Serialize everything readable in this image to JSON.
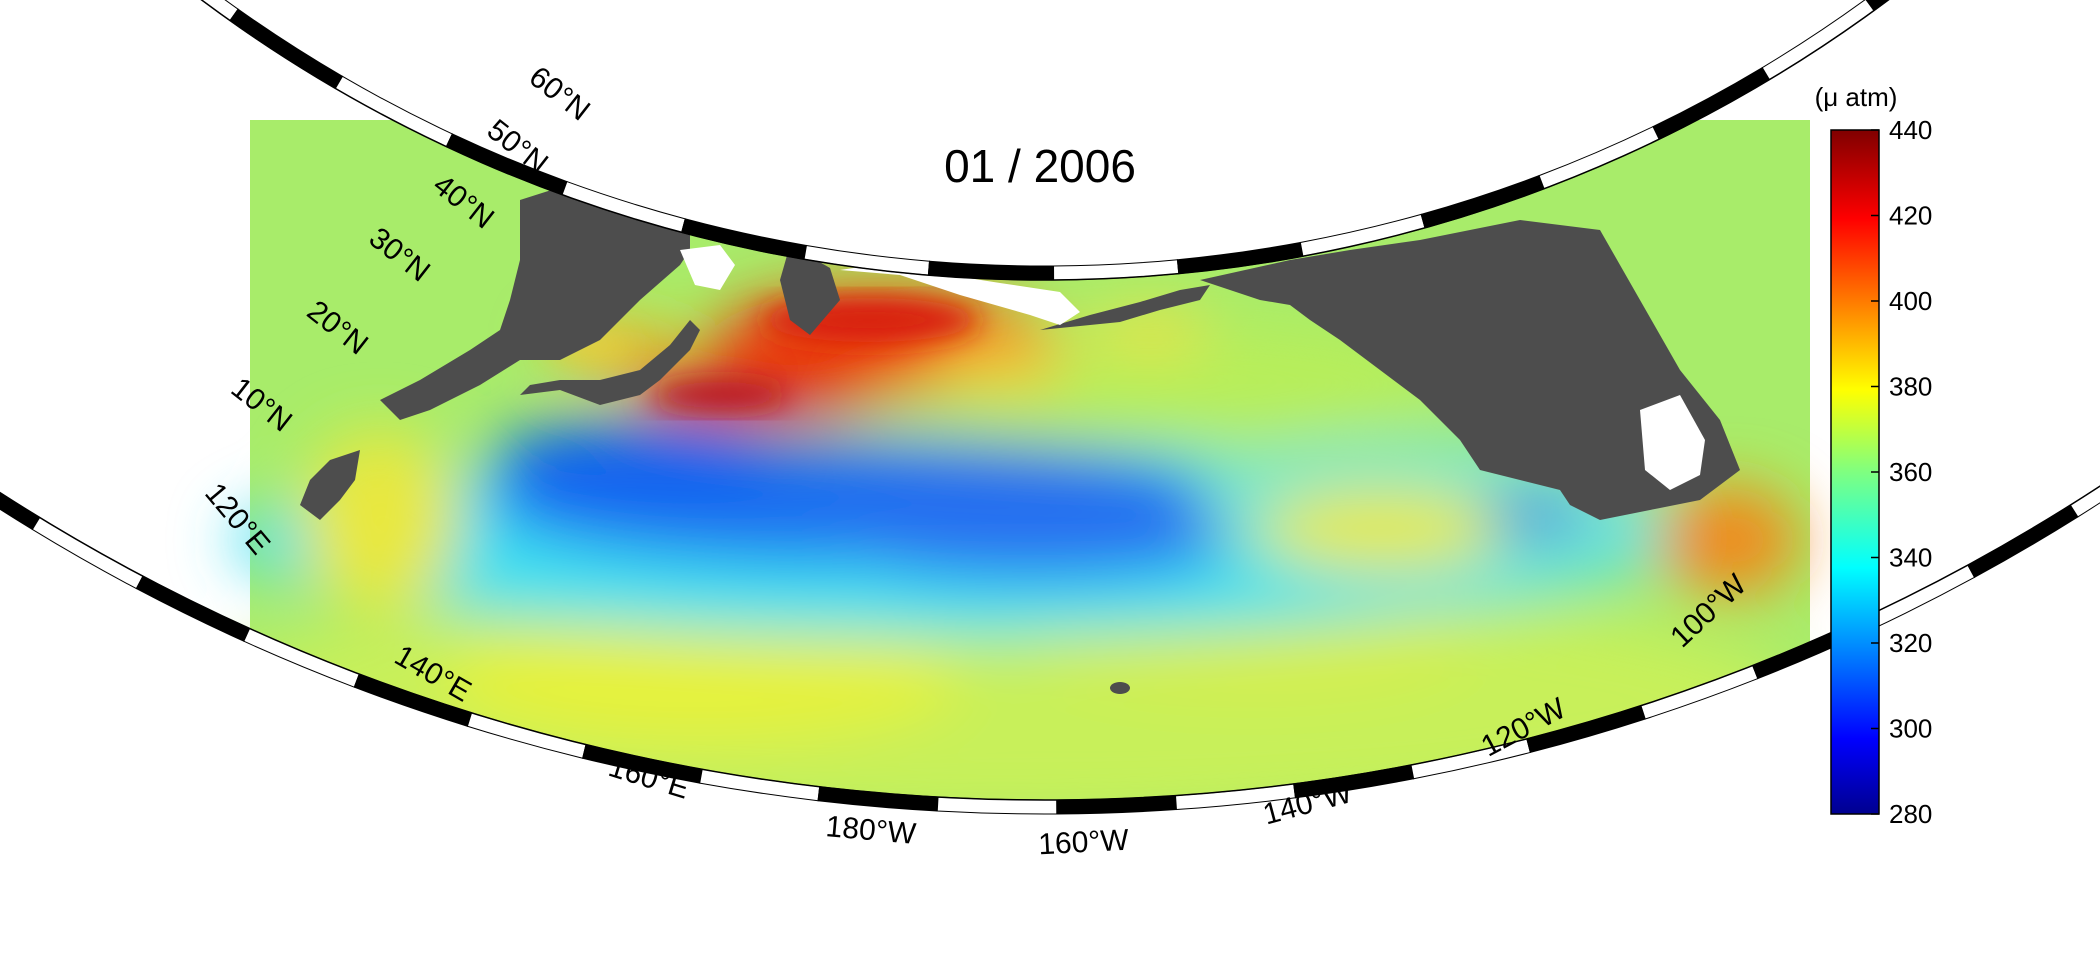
{
  "title": "01 / 2006",
  "colorbar": {
    "unit_label": "(μ atm)",
    "ticks": [
      "440",
      "420",
      "400",
      "380",
      "360",
      "340",
      "320",
      "300",
      "280"
    ],
    "range": [
      280,
      440
    ],
    "colormap": "jet"
  },
  "latitude_labels": [
    "60°N",
    "50°N",
    "40°N",
    "30°N",
    "20°N",
    "10°N"
  ],
  "longitude_labels": [
    "120°E",
    "140°E",
    "160°E",
    "180°W",
    "160°W",
    "140°W",
    "120°W",
    "100°W"
  ],
  "colors": {
    "land": "#4d4d4d",
    "missing": "#ffffff",
    "frame": "#000000"
  },
  "map_extent": {
    "lat_min_deg_n": 10,
    "lat_max_deg_n": 60,
    "lon_min": "120°E",
    "lon_max": "100°W"
  }
}
